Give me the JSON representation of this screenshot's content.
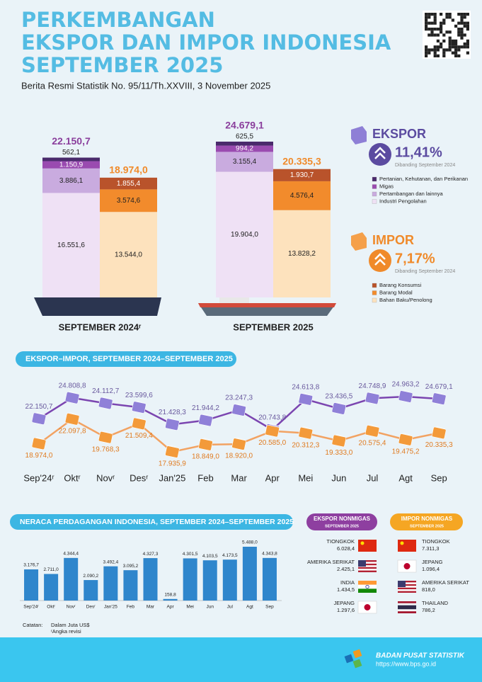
{
  "header": {
    "title": [
      "PERKEMBANGAN",
      "EKSPOR DAN IMPOR INDONESIA",
      "SEPTEMBER 2025"
    ],
    "subtitle": "Berita Resmi Statistik No. 95/11/Th.XXVIII, 3 November 2025"
  },
  "chart_data": [
    {
      "type": "stacked-bar",
      "categories": [
        "SEPTEMBER 2024ʳ",
        "SEPTEMBER 2025"
      ],
      "groups": [
        {
          "name": "EKSPOR",
          "growth": "11,41%",
          "growth_note": "Dibanding September 2024",
          "color": "#5b4ba0",
          "accent": "#8a3e9c",
          "totals": [
            22150.7,
            24679.1
          ],
          "total_labels": [
            "22.150,7",
            "24.679,1"
          ],
          "series": [
            {
              "name": "Pertanian, Kehutanan, dan Perikanan",
              "color": "#4a2a6c",
              "values": [
                562.1,
                625.5
              ],
              "value_labels": [
                "562,1",
                "625,5"
              ]
            },
            {
              "name": "Migas",
              "color": "#9a4bb0",
              "values": [
                1150.9,
                994.2
              ],
              "value_labels": [
                "1.150,9",
                "994,2"
              ]
            },
            {
              "name": "Pertambangan dan lainnya",
              "color": "#c9abdf",
              "values": [
                3886.1,
                3155.4
              ],
              "value_labels": [
                "3.886,1",
                "3.155,4"
              ]
            },
            {
              "name": "Industri Pengolahan",
              "color": "#efe1f5",
              "values": [
                16551.6,
                19904.0
              ],
              "value_labels": [
                "16.551,6",
                "19.904,0"
              ]
            }
          ]
        },
        {
          "name": "IMPOR",
          "growth": "7,17%",
          "growth_note": "Dibanding September 2024",
          "color": "#f08a2a",
          "accent": "#f08a2a",
          "totals": [
            18974.0,
            20335.3
          ],
          "total_labels": [
            "18.974,0",
            "20.335,3"
          ],
          "series": [
            {
              "name": "Barang Konsumsi",
              "color": "#b9532b",
              "values": [
                1855.4,
                1930.7
              ],
              "value_labels": [
                "1.855,4",
                "1.930,7"
              ]
            },
            {
              "name": "Barang Modal",
              "color": "#f28b2c",
              "values": [
                3574.6,
                4576.4
              ],
              "value_labels": [
                "3.574,6",
                "4.576,4"
              ]
            },
            {
              "name": "Bahan Baku/Penolong",
              "color": "#fde2bd",
              "values": [
                13544.0,
                13828.2
              ],
              "value_labels": [
                "13.544,0",
                "13.828,2"
              ]
            }
          ]
        }
      ]
    },
    {
      "type": "line",
      "title": "EKSPOR–IMPOR, SEPTEMBER 2024–SEPTEMBER 2025",
      "categories": [
        "Sep'24ʳ",
        "Oktʳ",
        "Novʳ",
        "Desʳ",
        "Jan'25",
        "Feb",
        "Mar",
        "Apr",
        "Mei",
        "Jun",
        "Jul",
        "Agt",
        "Sep"
      ],
      "series": [
        {
          "color": "#7b45b0",
          "marker": "#8f80d8",
          "label_color": "#6a5a9e",
          "values": [
            22150.7,
            24808.8,
            24112.7,
            23599.6,
            21428.3,
            21944.2,
            23247.3,
            20743.8,
            24613.8,
            23436.5,
            24748.9,
            24963.2,
            24679.1
          ],
          "value_labels": [
            "22.150,7",
            "24.808,8",
            "24.112,7",
            "23.599,6",
            "21.428,3",
            "21.944,2",
            "23.247,3",
            "20.743,8",
            "24.613,8",
            "23.436,5",
            "24.748,9",
            "24.963,2",
            "24.679,1"
          ]
        },
        {
          "color": "#f2a262",
          "marker": "#f39a3a",
          "label_color": "#e07b20",
          "values": [
            18974.0,
            22097.8,
            19768.3,
            21509.4,
            17935.9,
            18849.0,
            18920.0,
            20585.0,
            20312.3,
            19333.0,
            20575.4,
            19475.2,
            20335.3
          ],
          "value_labels": [
            "18.974,0",
            "22.097,8",
            "19.768,3",
            "21.509,4",
            "17.935,9",
            "18.849,0",
            "18.920,0",
            "20.585,0",
            "20.312,3",
            "19.333,0",
            "20.575,4",
            "19.475,2",
            "20.335,3"
          ]
        }
      ]
    },
    {
      "type": "bar",
      "title": "NERACA PERDAGANGAN INDONESIA, SEPTEMBER 2024–SEPTEMBER 2025",
      "color": "#2f86cc",
      "categories": [
        "Sep'24ʳ",
        "Oktʳ",
        "Novʳ",
        "Desʳ",
        "Jan'25",
        "Feb",
        "Mar",
        "Apr",
        "Mei",
        "Jun",
        "Jul",
        "Agt",
        "Sep"
      ],
      "values": [
        3176.7,
        2711.0,
        4344.4,
        2090.2,
        3492.4,
        3095.2,
        4327.3,
        158.8,
        4301.5,
        4103.5,
        4173.5,
        5488.0,
        4343.8
      ],
      "value_labels": [
        "3.176,7",
        "2.711,0",
        "4.344,4",
        "2.090,2",
        "3.492,4",
        "3.095,2",
        "4.327,3",
        "158,8",
        "4.301,5",
        "4.103,5",
        "4.173,5",
        "5.488,0",
        "4.343,8"
      ],
      "notes": [
        "Catatan:",
        "Dalam Juta US$",
        "ʳAngka revisi"
      ]
    }
  ],
  "partners": {
    "export": {
      "title": "EKSPOR NONMIGAS",
      "period": "SEPTEMBER 2025",
      "rows": [
        {
          "country": "TIONGKOK",
          "value": "6.028,4"
        },
        {
          "country": "AMERIKA SERIKAT",
          "value": "2.425,1"
        },
        {
          "country": "INDIA",
          "value": "1.434,5"
        },
        {
          "country": "JEPANG",
          "value": "1.297,6"
        }
      ]
    },
    "import": {
      "title": "IMPOR NONMIGAS",
      "period": "SEPTEMBER 2025",
      "rows": [
        {
          "country": "TIONGKOK",
          "value": "7.311,3"
        },
        {
          "country": "JEPANG",
          "value": "1.096,4"
        },
        {
          "country": "AMERIKA SERIKAT",
          "value": "818,0"
        },
        {
          "country": "THAILAND",
          "value": "786,2"
        }
      ]
    }
  },
  "footer": {
    "org": "BADAN PUSAT STATISTIK",
    "url": "https://www.bps.go.id"
  }
}
